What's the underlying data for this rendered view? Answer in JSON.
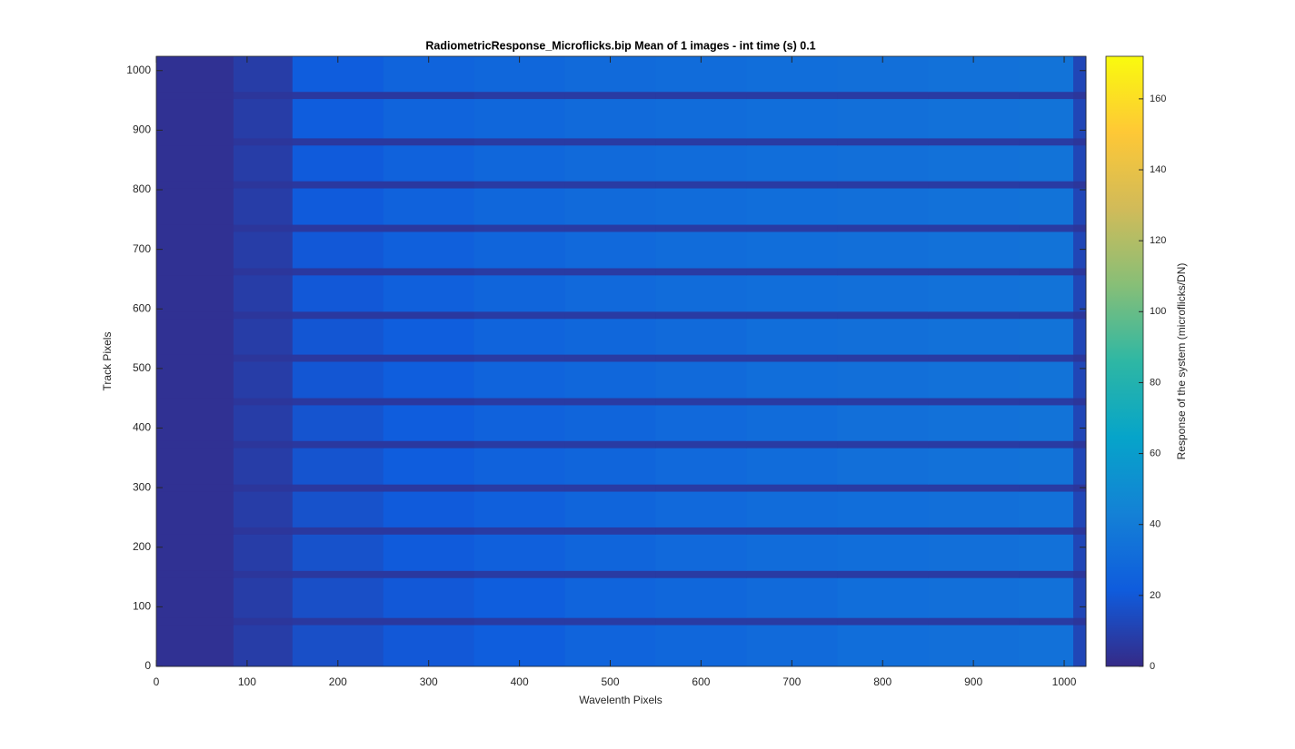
{
  "chart_data": {
    "type": "heatmap",
    "title": "RadiometricResponse_Microflicks.bip  Mean of 1 images - int time (s) 0.1",
    "x_label": "Wavelenth Pixels",
    "y_label": "Track Pixels",
    "colorbar_label": "Response of the system (microflicks/DN)",
    "colormap": "parula",
    "xlim": [
      0,
      1024
    ],
    "ylim": [
      0,
      1024
    ],
    "clim": [
      0,
      172
    ],
    "xticks": [
      0,
      100,
      200,
      300,
      400,
      500,
      600,
      700,
      800,
      900,
      1000
    ],
    "yticks": [
      0,
      100,
      200,
      300,
      400,
      500,
      600,
      700,
      800,
      900,
      1000
    ],
    "cticks": [
      0,
      20,
      40,
      60,
      80,
      100,
      120,
      140,
      160
    ],
    "x_edges": [
      0,
      85,
      150,
      250,
      350,
      450,
      550,
      650,
      750,
      850,
      950,
      1010,
      1024
    ],
    "y_edges": [
      0,
      70,
      82,
      149,
      161,
      222,
      234,
      294,
      306,
      367,
      379,
      439,
      451,
      512,
      524,
      584,
      596,
      657,
      669,
      730,
      742,
      803,
      815,
      875,
      887,
      953,
      965,
      1024
    ],
    "z": [
      [
        3,
        8,
        16,
        20,
        23,
        26,
        28,
        30,
        32,
        33,
        34,
        12
      ],
      [
        3,
        5,
        6,
        6,
        7,
        7,
        7,
        7,
        7,
        7,
        7,
        5
      ],
      [
        3,
        8,
        16,
        20,
        23,
        26,
        28,
        30,
        32,
        33,
        34,
        12
      ],
      [
        3,
        5,
        6,
        6,
        7,
        7,
        7,
        7,
        7,
        7,
        7,
        5
      ],
      [
        3,
        8,
        17,
        21,
        24,
        27,
        29,
        31,
        32,
        33,
        34,
        12
      ],
      [
        3,
        5,
        6,
        6,
        7,
        7,
        7,
        7,
        7,
        7,
        7,
        5
      ],
      [
        3,
        8,
        17,
        21,
        24,
        27,
        29,
        31,
        32,
        33,
        34,
        12
      ],
      [
        3,
        5,
        6,
        6,
        7,
        7,
        7,
        7,
        7,
        7,
        7,
        5
      ],
      [
        3,
        8,
        18,
        22,
        25,
        27,
        29,
        31,
        33,
        34,
        35,
        12
      ],
      [
        3,
        5,
        6,
        6,
        7,
        7,
        7,
        7,
        7,
        7,
        7,
        5
      ],
      [
        3,
        8,
        18,
        22,
        25,
        27,
        29,
        31,
        33,
        34,
        35,
        12
      ],
      [
        3,
        5,
        6,
        6,
        7,
        7,
        7,
        7,
        7,
        7,
        7,
        5
      ],
      [
        3,
        8,
        19,
        23,
        26,
        28,
        30,
        32,
        33,
        34,
        35,
        12
      ],
      [
        3,
        5,
        6,
        6,
        7,
        7,
        7,
        7,
        7,
        7,
        7,
        5
      ],
      [
        3,
        8,
        19,
        23,
        26,
        28,
        30,
        32,
        33,
        34,
        35,
        12
      ],
      [
        3,
        5,
        6,
        6,
        7,
        7,
        7,
        7,
        7,
        7,
        7,
        5
      ],
      [
        3,
        8,
        20,
        24,
        27,
        29,
        31,
        32,
        33,
        34,
        35,
        12
      ],
      [
        3,
        5,
        6,
        6,
        7,
        7,
        7,
        7,
        7,
        7,
        7,
        5
      ],
      [
        3,
        8,
        20,
        24,
        27,
        29,
        31,
        32,
        33,
        34,
        35,
        12
      ],
      [
        3,
        5,
        6,
        6,
        7,
        7,
        7,
        7,
        7,
        7,
        7,
        5
      ],
      [
        3,
        8,
        21,
        25,
        28,
        30,
        31,
        32,
        33,
        34,
        35,
        12
      ],
      [
        3,
        5,
        6,
        6,
        7,
        7,
        7,
        7,
        7,
        7,
        7,
        5
      ],
      [
        3,
        8,
        21,
        25,
        28,
        30,
        31,
        32,
        33,
        34,
        35,
        12
      ],
      [
        3,
        5,
        6,
        6,
        7,
        7,
        7,
        7,
        7,
        7,
        7,
        5
      ],
      [
        3,
        8,
        22,
        26,
        28,
        30,
        31,
        32,
        33,
        34,
        35,
        12
      ],
      [
        3,
        5,
        6,
        6,
        7,
        7,
        7,
        7,
        7,
        7,
        7,
        5
      ],
      [
        3,
        8,
        22,
        26,
        28,
        30,
        31,
        32,
        33,
        34,
        35,
        12
      ]
    ]
  }
}
